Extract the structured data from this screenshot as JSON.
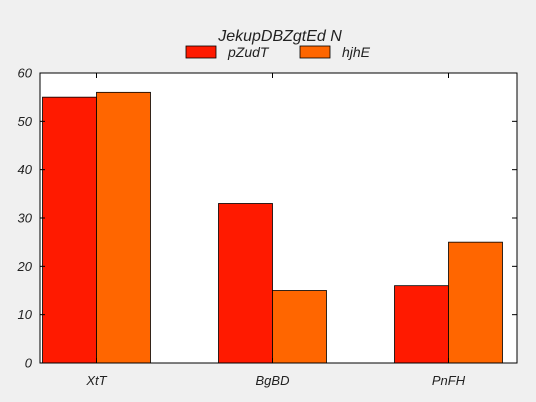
{
  "chart_data": {
    "type": "bar",
    "title": "JekupDBZgtEd N",
    "xlabel": "",
    "ylabel": "",
    "categories": [
      "XtT",
      "BgBD",
      "PnFH"
    ],
    "series": [
      {
        "name": "pZudT",
        "values": [
          55,
          33,
          16
        ],
        "color": "#ff1a00"
      },
      {
        "name": "hjhE",
        "values": [
          56,
          15,
          25
        ],
        "color": "#ff6600"
      }
    ],
    "ylim": [
      0,
      60
    ],
    "yticks": [
      0,
      10,
      20,
      30,
      40,
      50,
      60
    ],
    "grid": false,
    "legend_position": "top-center"
  },
  "colors": {
    "background": "#f0f0f0",
    "plot_background": "#ffffff",
    "axis": "#000000"
  }
}
